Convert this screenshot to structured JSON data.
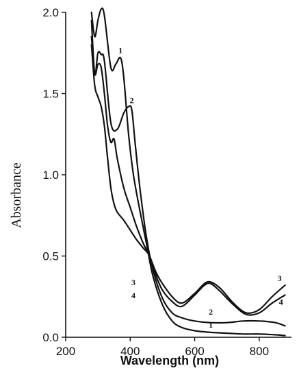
{
  "chart_data": {
    "type": "line",
    "title": "",
    "xlabel": "Wavelength (nm)",
    "ylabel": "Absorbance",
    "xlim": [
      200,
      900
    ],
    "ylim": [
      0,
      2.0
    ],
    "x_ticks": [
      "200",
      "400",
      "600",
      "800"
    ],
    "y_ticks": [
      "0.0",
      "0.5",
      "1.0",
      "1.5",
      "2.0"
    ],
    "grid": false,
    "series": [
      {
        "name": "1",
        "label_at": [
          370,
          1.75
        ],
        "x": [
          280,
          290,
          300,
          310,
          320,
          340,
          355,
          370,
          380,
          395,
          410,
          430,
          450,
          470,
          500,
          530,
          560,
          600,
          650,
          700,
          750,
          800,
          850,
          880
        ],
        "y": [
          2.0,
          1.85,
          1.95,
          2.02,
          1.98,
          1.66,
          1.68,
          1.72,
          1.6,
          1.25,
          1.0,
          0.78,
          0.58,
          0.38,
          0.2,
          0.1,
          0.06,
          0.04,
          0.03,
          0.025,
          0.02,
          0.02,
          0.015,
          0.01
        ]
      },
      {
        "name": "2",
        "label_at": [
          405,
          1.44
        ],
        "x": [
          280,
          290,
          300,
          310,
          320,
          340,
          360,
          380,
          395,
          405,
          415,
          430,
          450,
          470,
          500,
          530,
          560,
          600,
          650,
          700,
          750,
          800,
          850,
          880
        ],
        "y": [
          1.95,
          1.62,
          1.75,
          1.74,
          1.7,
          1.32,
          1.28,
          1.38,
          1.42,
          1.4,
          1.2,
          0.92,
          0.62,
          0.42,
          0.24,
          0.15,
          0.12,
          0.1,
          0.09,
          0.09,
          0.1,
          0.1,
          0.09,
          0.07
        ]
      },
      {
        "name": "3",
        "label_at": [
          410,
          0.32
        ],
        "x": [
          280,
          290,
          300,
          310,
          320,
          330,
          340,
          350,
          360,
          380,
          400,
          420,
          440,
          460,
          480,
          500,
          530,
          560,
          600,
          630,
          650,
          680,
          720,
          760,
          800,
          840,
          880
        ],
        "y": [
          1.85,
          1.62,
          1.68,
          1.66,
          1.5,
          1.3,
          1.2,
          1.22,
          1.1,
          0.92,
          0.8,
          0.68,
          0.58,
          0.5,
          0.4,
          0.33,
          0.25,
          0.21,
          0.27,
          0.33,
          0.34,
          0.3,
          0.21,
          0.15,
          0.17,
          0.25,
          0.32
        ]
      },
      {
        "name": "4",
        "label_at": [
          410,
          0.24
        ],
        "x": [
          280,
          290,
          300,
          310,
          320,
          330,
          340,
          350,
          360,
          380,
          400,
          420,
          440,
          460,
          480,
          500,
          530,
          560,
          600,
          630,
          650,
          680,
          720,
          760,
          800,
          840,
          880
        ],
        "y": [
          1.8,
          1.55,
          1.48,
          1.42,
          1.3,
          1.1,
          0.92,
          0.82,
          0.77,
          0.72,
          0.66,
          0.6,
          0.55,
          0.5,
          0.38,
          0.29,
          0.22,
          0.19,
          0.26,
          0.32,
          0.33,
          0.28,
          0.2,
          0.14,
          0.15,
          0.21,
          0.26
        ]
      }
    ]
  }
}
